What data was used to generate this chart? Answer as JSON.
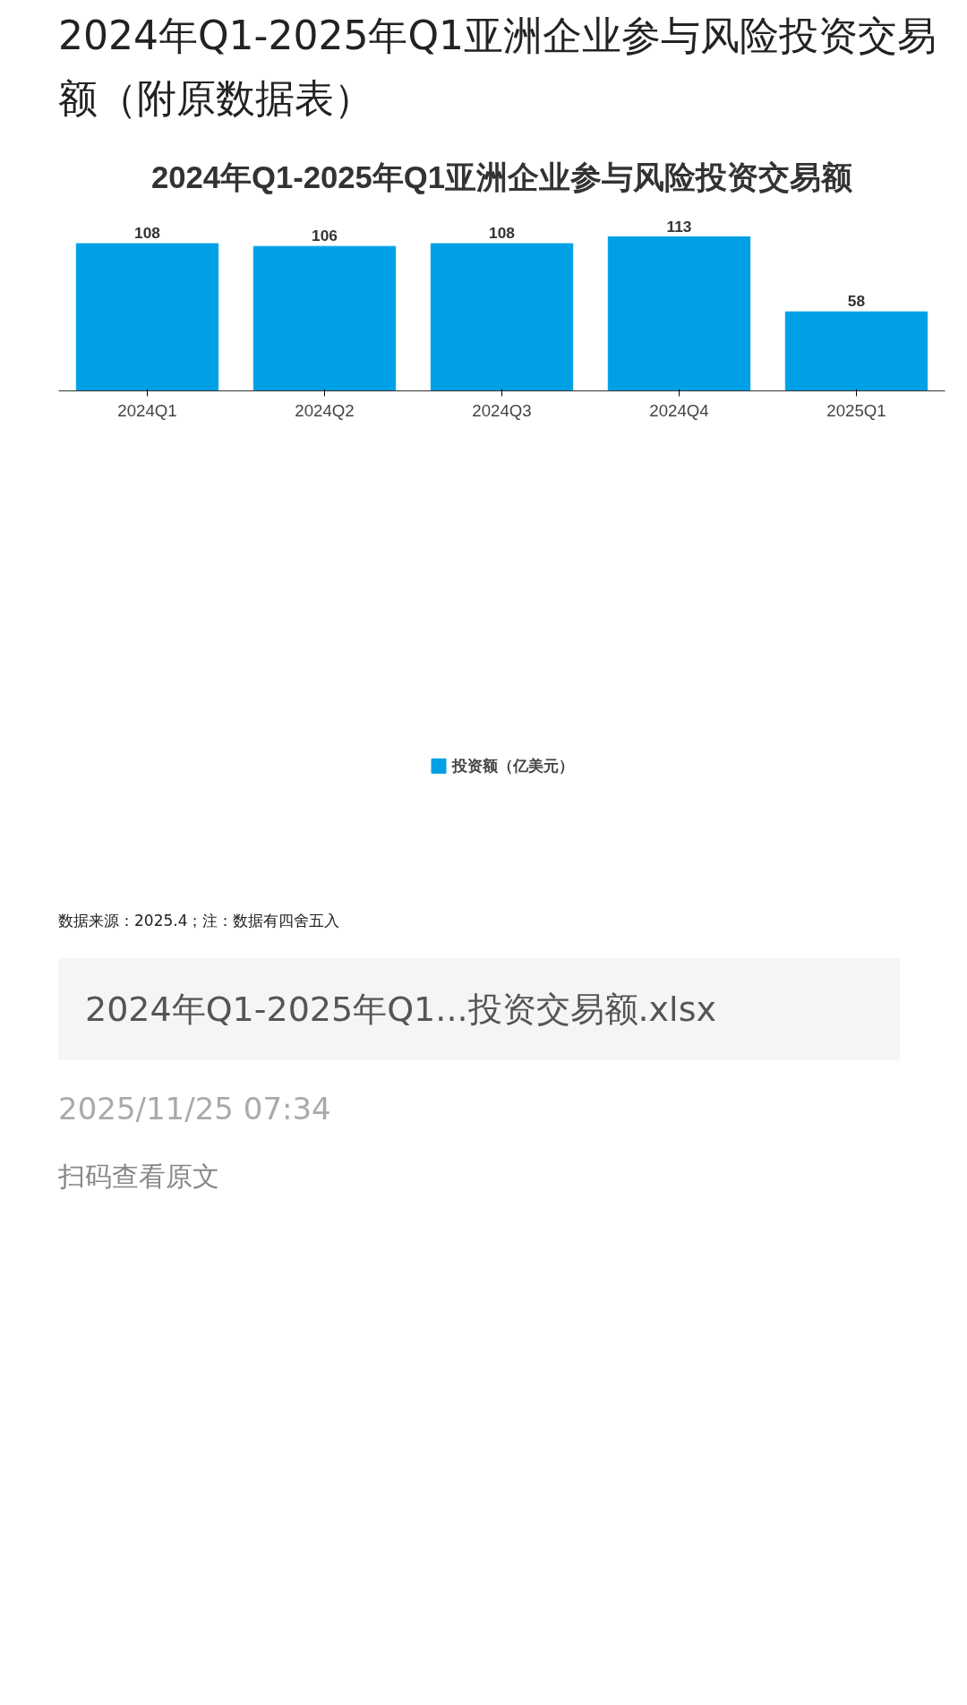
{
  "chart_data": {
    "type": "bar",
    "title": "2024年Q1-2025年Q1亚洲企业参与风险投资交易额（附原数据表）",
    "subtitle": "2024年Q1-2025年Q1亚洲企业参与风险投资交易额",
    "categories": [
      "2024Q1",
      "2024Q2",
      "2024Q3",
      "2024Q4",
      "2025Q1"
    ],
    "series": [
      {
        "name": "投资额（亿美元）",
        "color": "#00a0e6",
        "values": [
          108,
          106,
          108,
          113,
          58
        ]
      }
    ],
    "data_labels": true,
    "legend": "bottom",
    "grid": false,
    "annotations": [
      "数据来源：2025.4；注：数据有四舍五入",
      "2024年Q1-2025年Q1...投资交易额.xlsx",
      "2025/11/25 07:34",
      "扫码查看原文"
    ]
  }
}
